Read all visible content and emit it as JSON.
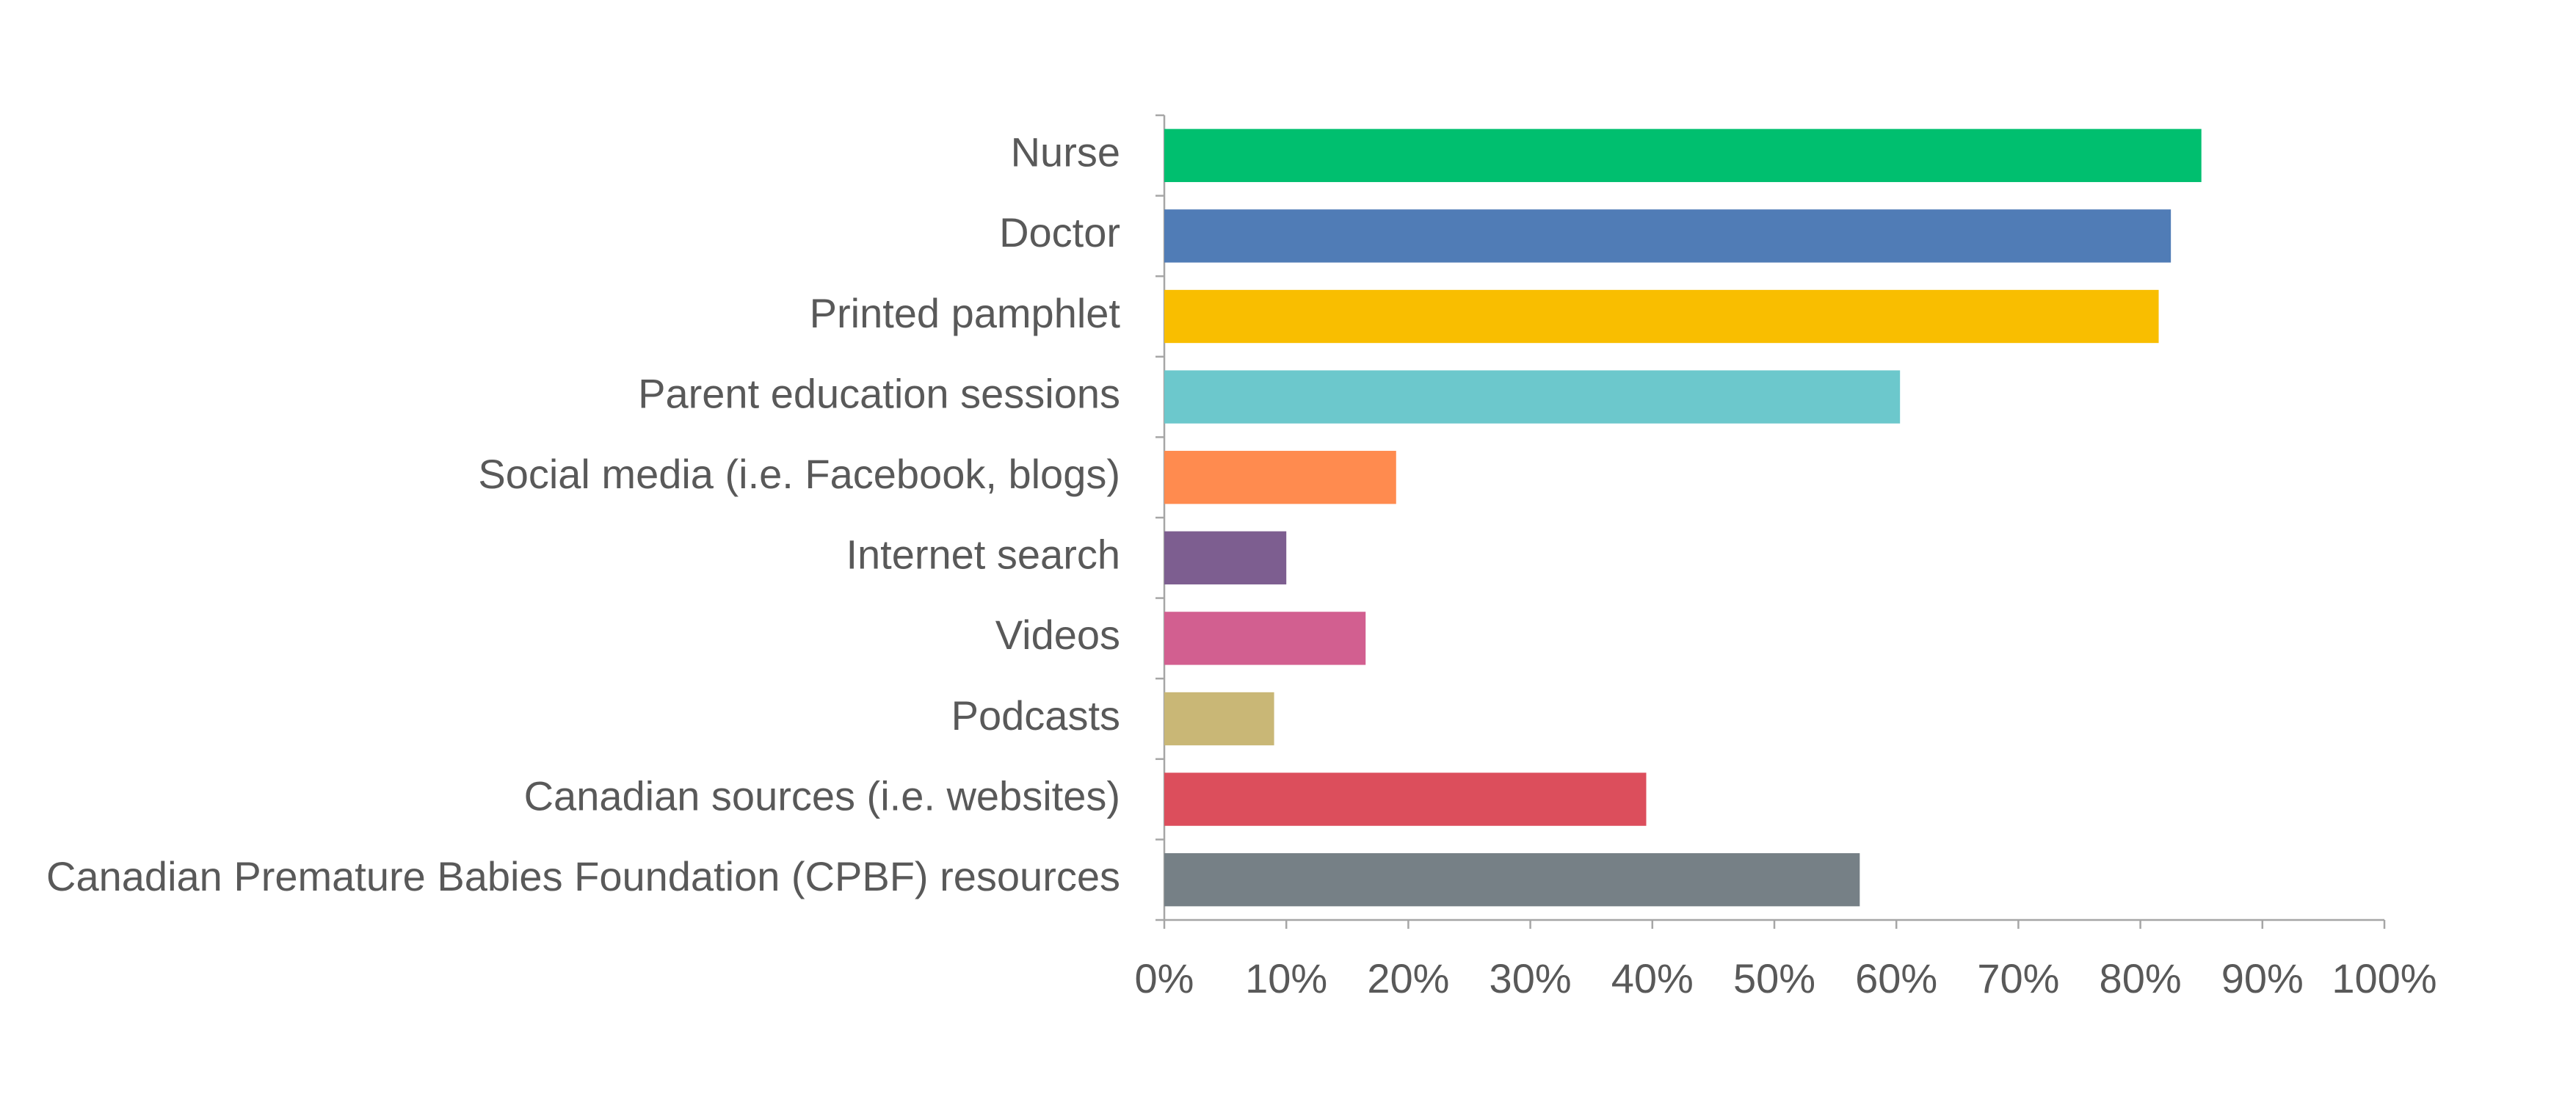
{
  "chart_data": {
    "type": "bar",
    "orientation": "horizontal",
    "categories": [
      "Nurse",
      "Doctor",
      "Printed pamphlet",
      "Parent education sessions",
      "Social media (i.e. Facebook, blogs)",
      "Internet search",
      "Videos",
      "Podcasts",
      "Canadian sources (i.e. websites)",
      "Canadian Premature Babies Foundation (CPBF) resources"
    ],
    "values": [
      85,
      82.5,
      81.5,
      60.3,
      19,
      10,
      16.5,
      9,
      39.5,
      57
    ],
    "colors": [
      "#00bf6f",
      "#507cb6",
      "#f9be00",
      "#6cc8cc",
      "#ff8b4f",
      "#7d5e90",
      "#d25f90",
      "#c9b776",
      "#dc4e5c",
      "#768086"
    ],
    "xlim": [
      0,
      100
    ],
    "xticks": [
      {
        "value": 0,
        "label": "0%"
      },
      {
        "value": 10,
        "label": "10%"
      },
      {
        "value": 20,
        "label": "20%"
      },
      {
        "value": 30,
        "label": "30%"
      },
      {
        "value": 40,
        "label": "40%"
      },
      {
        "value": 50,
        "label": "50%"
      },
      {
        "value": 60,
        "label": "60%"
      },
      {
        "value": 70,
        "label": "70%"
      },
      {
        "value": 80,
        "label": "80%"
      },
      {
        "value": 90,
        "label": "90%"
      },
      {
        "value": 100,
        "label": "100%"
      }
    ],
    "grid": false
  }
}
